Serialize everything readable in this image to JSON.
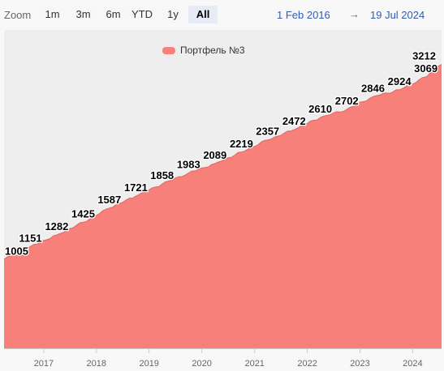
{
  "toolbar": {
    "zoom_label": "Zoom",
    "buttons": [
      "1m",
      "3m",
      "6m",
      "YTD",
      "1y",
      "All"
    ],
    "active_button": "All",
    "range_from": "1 Feb 2016",
    "range_arrow": "→",
    "range_to": "19 Jul 2024"
  },
  "colors": {
    "series": "#f7807a",
    "series_line": "#e0665f",
    "plot_bg": "#eeeeee",
    "accent": "#335cad"
  },
  "chart_data": {
    "type": "area",
    "title": "",
    "xlabel": "",
    "ylabel": "",
    "x_axis_ticks": [
      "2017",
      "2018",
      "2019",
      "2020",
      "2021",
      "2022",
      "2023",
      "2024"
    ],
    "x_range": [
      "2016-04-01",
      "2024-07-19"
    ],
    "ylim": [
      0,
      3600
    ],
    "grid": false,
    "legend_position": "top-center",
    "series": [
      {
        "name": "Портфель №3",
        "x": [
          "2016-04-01",
          "2016-10-01",
          "2017-04-01",
          "2017-10-01",
          "2018-04-01",
          "2018-10-01",
          "2019-04-01",
          "2019-10-01",
          "2020-04-01",
          "2020-10-01",
          "2021-04-01",
          "2021-10-01",
          "2022-04-01",
          "2022-10-01",
          "2023-04-01",
          "2023-10-01",
          "2024-04-01",
          "2024-07-19"
        ],
        "values": [
          1005,
          1151,
          1282,
          1425,
          1587,
          1721,
          1858,
          1983,
          2089,
          2219,
          2357,
          2472,
          2610,
          2702,
          2846,
          2924,
          3069,
          3212
        ],
        "labels": [
          "1005",
          "1151",
          "1282",
          "1425",
          "1587",
          "1721",
          "1858",
          "1983",
          "2089",
          "2219",
          "2357",
          "2472",
          "2610",
          "2702",
          "2846",
          "2924",
          "3069",
          "3212"
        ]
      }
    ]
  }
}
